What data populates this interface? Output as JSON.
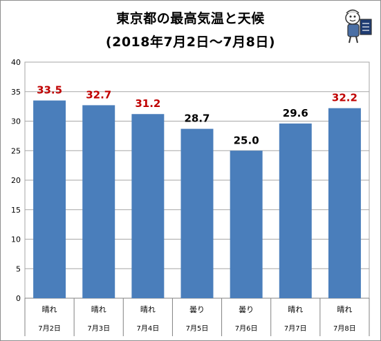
{
  "chart_data": {
    "type": "bar",
    "title": "東京都の最高気温と天候",
    "subtitle": "(2018年7月2日～7月8日)",
    "categories": [
      "7月2日",
      "7月3日",
      "7月4日",
      "7月5日",
      "7月6日",
      "7月7日",
      "7月8日"
    ],
    "weather": [
      "晴れ",
      "晴れ",
      "晴れ",
      "曇り",
      "曇り",
      "晴れ",
      "晴れ"
    ],
    "values": [
      33.5,
      32.7,
      31.2,
      28.7,
      25.0,
      29.6,
      32.2
    ],
    "value_labels": [
      "33.5",
      "32.7",
      "31.2",
      "28.7",
      "25.0",
      "29.6",
      "32.2"
    ],
    "label_colors": [
      "#c00000",
      "#c00000",
      "#c00000",
      "#000000",
      "#000000",
      "#000000",
      "#c00000"
    ],
    "yticks": [
      "0",
      "5",
      "10",
      "15",
      "20",
      "25",
      "30",
      "35",
      "40"
    ],
    "ylim": [
      0,
      40
    ],
    "grid": true,
    "bar_color": "#4a7ebb",
    "xlabel": "",
    "ylabel": ""
  },
  "logo": {
    "icon": "mascot-logo-icon"
  }
}
